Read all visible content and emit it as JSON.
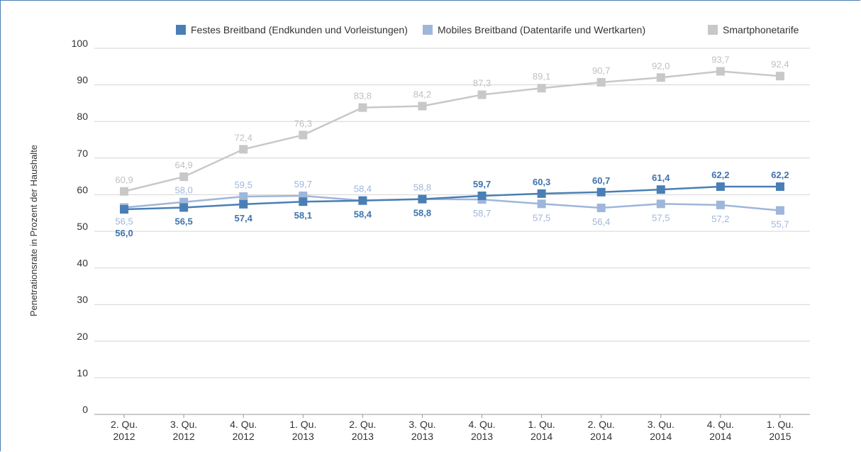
{
  "chart_data": {
    "type": "line",
    "ylabel": "Penetrationsrate in Prozent der Haushalte",
    "ylim": [
      0,
      100
    ],
    "yticks": [
      0,
      10,
      20,
      30,
      40,
      50,
      60,
      70,
      80,
      90,
      100
    ],
    "grid": true,
    "legend_position": "top",
    "categories": [
      [
        "2. Qu.",
        "2012"
      ],
      [
        "3. Qu.",
        "2012"
      ],
      [
        "4. Qu.",
        "2012"
      ],
      [
        "1. Qu.",
        "2013"
      ],
      [
        "2. Qu.",
        "2013"
      ],
      [
        "3. Qu.",
        "2013"
      ],
      [
        "4. Qu.",
        "2013"
      ],
      [
        "1. Qu.",
        "2014"
      ],
      [
        "2. Qu.",
        "2014"
      ],
      [
        "3. Qu.",
        "2014"
      ],
      [
        "4. Qu.",
        "2014"
      ],
      [
        "1. Qu.",
        "2015"
      ]
    ],
    "series": [
      {
        "name": "Festes Breitband (Endkunden und Vorleistungen)",
        "color": "#4a7fb5",
        "label_color": "#3e73ad",
        "values": [
          56.0,
          56.5,
          57.4,
          58.1,
          58.4,
          58.8,
          59.7,
          60.3,
          60.7,
          61.4,
          62.2,
          62.2
        ],
        "labels": [
          "56,0",
          "56,5",
          "57,4",
          "58,1",
          "58,4",
          "58,8",
          "59,7",
          "60,3",
          "60,7",
          "61,4",
          "62,2",
          "62,2"
        ],
        "label_pos": [
          "below",
          "below",
          "below",
          "below",
          "below",
          "below",
          "above",
          "above",
          "above",
          "above",
          "above",
          "above"
        ]
      },
      {
        "name": "Mobiles Breitband (Datentarife und Wertkarten)",
        "color": "#9fb6db",
        "label_color": "#9fb6db",
        "values": [
          56.5,
          58.0,
          59.5,
          59.7,
          58.4,
          58.8,
          58.7,
          57.5,
          56.4,
          57.5,
          57.2,
          55.7
        ],
        "labels": [
          "56,5",
          "58,0",
          "59,5",
          "59,7",
          "58,4",
          "58,8",
          "58,7",
          "57,5",
          "56,4",
          "57,5",
          "57,2",
          "55,7"
        ],
        "label_pos": [
          "below",
          "above",
          "above",
          "above",
          "above",
          "above",
          "below",
          "below",
          "below",
          "below",
          "below",
          "below"
        ]
      },
      {
        "name": "Smartphonetarife",
        "color": "#c8c8c8",
        "label_color": "#c0c0c0",
        "values": [
          60.9,
          64.9,
          72.4,
          76.3,
          83.8,
          84.2,
          87.3,
          89.1,
          90.7,
          92.0,
          93.7,
          92.4
        ],
        "labels": [
          "60,9",
          "64,9",
          "72,4",
          "76,3",
          "83,8",
          "84,2",
          "87,3",
          "89,1",
          "90,7",
          "92,0",
          "93,7",
          "92,4"
        ],
        "label_pos": [
          "above",
          "above",
          "above",
          "above",
          "above",
          "above",
          "above",
          "above",
          "above",
          "above",
          "above",
          "above"
        ]
      }
    ]
  }
}
